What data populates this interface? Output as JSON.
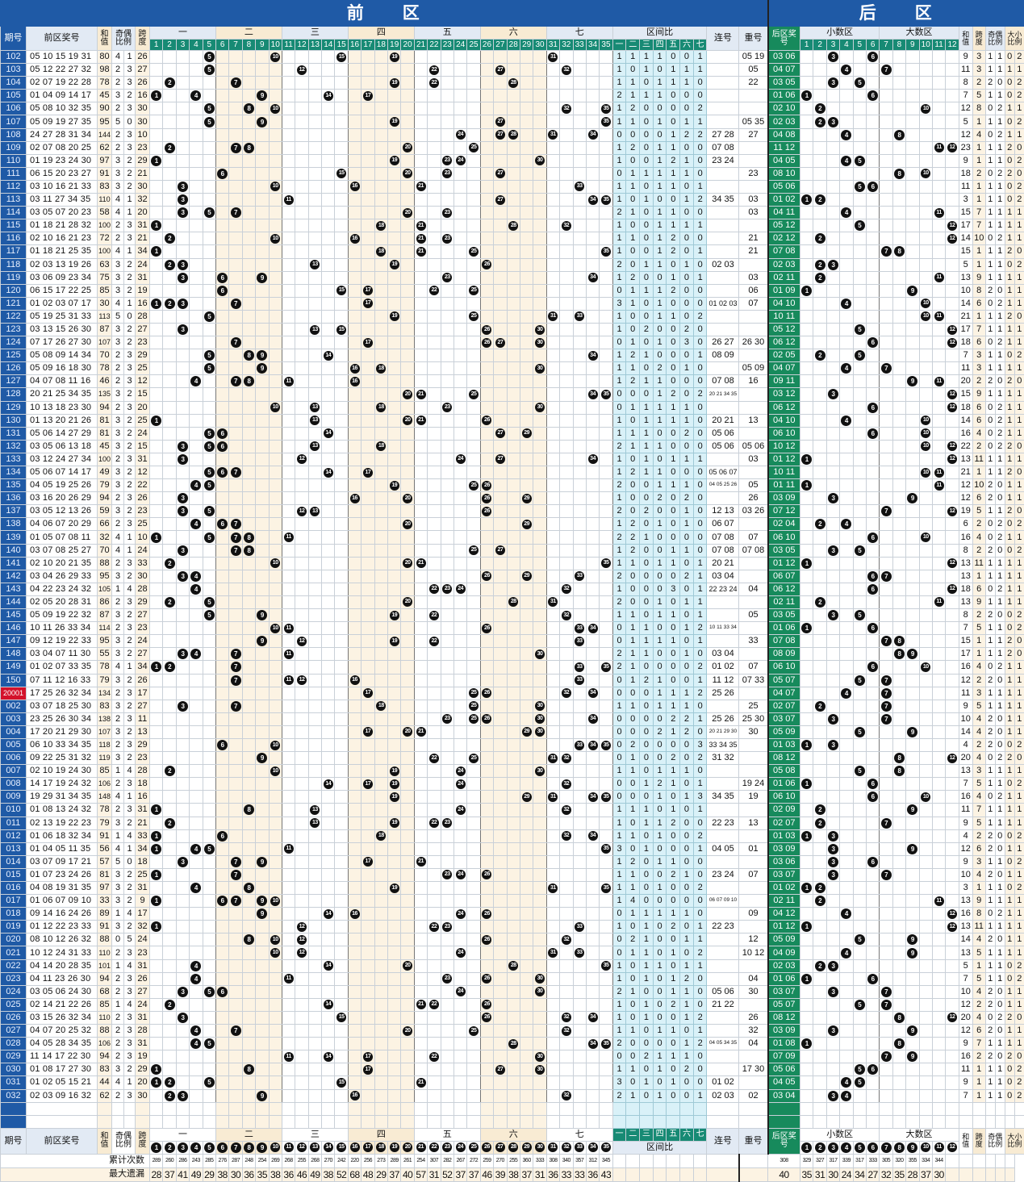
{
  "title": {
    "front": "前　　区",
    "back": "后　　区"
  },
  "headers": {
    "period": "期号",
    "front_numbers": "前区奖号",
    "sum": "和值",
    "odd_even": "奇偶比例",
    "span": "跨度",
    "zone_ratio": "区间比",
    "consecutive": "连号",
    "repeat": "重号",
    "back_numbers": "后区奖号",
    "small_zone": "小数区",
    "big_zone": "大数区",
    "back_sum": "和值",
    "back_span": "跨度",
    "back_odd_even": "奇偶比例",
    "back_big_small": "大小比例",
    "cumulative": "累计次数",
    "max_missing": "最大遗漏"
  },
  "front_zones": [
    "一",
    "二",
    "三",
    "四",
    "五",
    "六",
    "七"
  ],
  "colors": {
    "title": "#1f5aa6",
    "back_column": "#178a5c",
    "highlight": "#d3122b",
    "zone_ratio_bg": "#d9f1f8",
    "cream": "#fcf3e3"
  },
  "rows": [
    [
      "102",
      "05 10 15 19 31",
      "80",
      "4",
      "1",
      "26",
      "1111001",
      "",
      "05 19",
      "03 06",
      "9",
      "3",
      "1",
      "1",
      "0",
      "2"
    ],
    [
      "103",
      "05 12 22 27 32",
      "98",
      "2",
      "3",
      "27",
      "1010111",
      "",
      "05",
      "04 07",
      "11",
      "3",
      "1",
      "1",
      "1",
      "1"
    ],
    [
      "104",
      "02 07 19 22 28",
      "78",
      "2",
      "3",
      "26",
      "1101110",
      "",
      "22",
      "03 05",
      "8",
      "2",
      "2",
      "0",
      "0",
      "2"
    ],
    [
      "105",
      "01 04 09 14 17",
      "45",
      "3",
      "2",
      "16",
      "2111000",
      "",
      "",
      "01 06",
      "7",
      "5",
      "1",
      "1",
      "0",
      "2"
    ],
    [
      "106",
      "05 08 10 32 35",
      "90",
      "2",
      "3",
      "30",
      "1200002",
      "",
      "",
      "02 10",
      "12",
      "8",
      "0",
      "2",
      "1",
      "1"
    ],
    [
      "107",
      "05 09 19 27 35",
      "95",
      "5",
      "0",
      "30",
      "1101011",
      "",
      "05 35",
      "02 03",
      "5",
      "1",
      "1",
      "1",
      "0",
      "2"
    ],
    [
      "108",
      "24 27 28 31 34",
      "144",
      "2",
      "3",
      "10",
      "0000122",
      "27 28",
      "27",
      "04 08",
      "12",
      "4",
      "0",
      "2",
      "1",
      "1"
    ],
    [
      "109",
      "02 07 08 20 25",
      "62",
      "2",
      "3",
      "23",
      "1201100",
      "07 08",
      "",
      "11 12",
      "23",
      "1",
      "1",
      "1",
      "2",
      "0"
    ],
    [
      "110",
      "01 19 23 24 30",
      "97",
      "3",
      "2",
      "29",
      "1001210",
      "23 24",
      "",
      "04 05",
      "9",
      "1",
      "1",
      "1",
      "0",
      "2"
    ],
    [
      "111",
      "06 15 20 23 27",
      "91",
      "3",
      "2",
      "21",
      "0111110",
      "",
      "23",
      "08 10",
      "18",
      "2",
      "0",
      "2",
      "2",
      "0"
    ],
    [
      "112",
      "03 10 16 21 33",
      "83",
      "3",
      "2",
      "30",
      "1101101",
      "",
      "",
      "05 06",
      "11",
      "1",
      "1",
      "1",
      "0",
      "2"
    ],
    [
      "113",
      "03 11 27 34 35",
      "110",
      "4",
      "1",
      "32",
      "1010012",
      "34 35",
      "03",
      "01 02",
      "3",
      "1",
      "1",
      "1",
      "0",
      "2"
    ],
    [
      "114",
      "03 05 07 20 23",
      "58",
      "4",
      "1",
      "20",
      "2101100",
      "",
      "03",
      "04 11",
      "15",
      "7",
      "1",
      "1",
      "1",
      "1"
    ],
    [
      "115",
      "01 18 21 28 32",
      "100",
      "2",
      "3",
      "31",
      "1001111",
      "",
      "",
      "05 12",
      "17",
      "7",
      "1",
      "1",
      "1",
      "1"
    ],
    [
      "116",
      "02 10 16 21 23",
      "72",
      "2",
      "3",
      "21",
      "1101200",
      "",
      "21",
      "02 12",
      "14",
      "10",
      "0",
      "2",
      "1",
      "1"
    ],
    [
      "117",
      "01 18 21 25 35",
      "100",
      "4",
      "1",
      "34",
      "1001201",
      "",
      "21",
      "07 08",
      "15",
      "1",
      "1",
      "1",
      "2",
      "0"
    ],
    [
      "118",
      "02 03 13 19 26",
      "63",
      "3",
      "2",
      "24",
      "2011010",
      "02 03",
      "",
      "02 03",
      "5",
      "1",
      "1",
      "1",
      "0",
      "2"
    ],
    [
      "119",
      "03 06 09 23 34",
      "75",
      "3",
      "2",
      "31",
      "1200101",
      "",
      "03",
      "02 11",
      "13",
      "9",
      "1",
      "1",
      "1",
      "1"
    ],
    [
      "120",
      "06 15 17 22 25",
      "85",
      "3",
      "2",
      "19",
      "0111200",
      "",
      "06",
      "01 09",
      "10",
      "8",
      "2",
      "0",
      "1",
      "1"
    ],
    [
      "121",
      "01 02 03 07 17",
      "30",
      "4",
      "1",
      "16",
      "3101000",
      "01 02 03",
      "07",
      "04 10",
      "14",
      "6",
      "0",
      "2",
      "1",
      "1"
    ],
    [
      "122",
      "05 19 25 31 33",
      "113",
      "5",
      "0",
      "28",
      "1001102",
      "",
      "",
      "10 11",
      "21",
      "1",
      "1",
      "1",
      "2",
      "0"
    ],
    [
      "123",
      "03 13 15 26 30",
      "87",
      "3",
      "2",
      "27",
      "1020020",
      "",
      "",
      "05 12",
      "17",
      "7",
      "1",
      "1",
      "1",
      "1"
    ],
    [
      "124",
      "07 17 26 27 30",
      "107",
      "3",
      "2",
      "23",
      "0101030",
      "26 27",
      "26 30",
      "06 12",
      "18",
      "6",
      "0",
      "2",
      "1",
      "1"
    ],
    [
      "125",
      "05 08 09 14 34",
      "70",
      "2",
      "3",
      "29",
      "1210001",
      "08 09",
      "",
      "02 05",
      "7",
      "3",
      "1",
      "1",
      "0",
      "2"
    ],
    [
      "126",
      "05 09 16 18 30",
      "78",
      "2",
      "3",
      "25",
      "1102010",
      "",
      "05 09",
      "04 07",
      "11",
      "3",
      "1",
      "1",
      "1",
      "1"
    ],
    [
      "127",
      "04 07 08 11 16",
      "46",
      "2",
      "3",
      "12",
      "1211000",
      "07 08",
      "16",
      "09 11",
      "20",
      "2",
      "2",
      "0",
      "2",
      "0"
    ],
    [
      "128",
      "20 21 25 34 35",
      "135",
      "3",
      "2",
      "15",
      "0001202",
      "20 21 34 35",
      "",
      "03 12",
      "15",
      "9",
      "1",
      "1",
      "1",
      "1"
    ],
    [
      "129",
      "10 13 18 23 30",
      "94",
      "2",
      "3",
      "20",
      "0111110",
      "",
      "",
      "06 12",
      "18",
      "6",
      "0",
      "2",
      "1",
      "1"
    ],
    [
      "130",
      "01 13 20 21 26",
      "81",
      "3",
      "2",
      "25",
      "1011110",
      "20 21",
      "13",
      "04 10",
      "14",
      "6",
      "0",
      "2",
      "1",
      "1"
    ],
    [
      "131",
      "05 06 14 27 29",
      "81",
      "3",
      "2",
      "24",
      "1110020",
      "05 06",
      "",
      "06 10",
      "16",
      "4",
      "0",
      "2",
      "1",
      "1"
    ],
    [
      "132",
      "03 05 06 13 18",
      "45",
      "3",
      "2",
      "15",
      "2111000",
      "05 06",
      "05 06",
      "10 12",
      "22",
      "2",
      "0",
      "2",
      "2",
      "0"
    ],
    [
      "133",
      "03 12 24 27 34",
      "100",
      "2",
      "3",
      "31",
      "1010111",
      "",
      "03",
      "01 12",
      "13",
      "11",
      "1",
      "1",
      "1",
      "1"
    ],
    [
      "134",
      "05 06 07 14 17",
      "49",
      "3",
      "2",
      "12",
      "1211000",
      "05 06 07",
      "",
      "10 11",
      "21",
      "1",
      "1",
      "1",
      "2",
      "0"
    ],
    [
      "135",
      "04 05 19 25 26",
      "79",
      "3",
      "2",
      "22",
      "2001110",
      "04 05 25 26",
      "05",
      "01 11",
      "12",
      "10",
      "2",
      "0",
      "1",
      "1"
    ],
    [
      "136",
      "03 16 20 26 29",
      "94",
      "2",
      "3",
      "26",
      "1002020",
      "",
      "26",
      "03 09",
      "12",
      "6",
      "2",
      "0",
      "1",
      "1"
    ],
    [
      "137",
      "03 05 12 13 26",
      "59",
      "3",
      "2",
      "23",
      "2020010",
      "12 13",
      "03 26",
      "07 12",
      "19",
      "5",
      "1",
      "1",
      "2",
      "0"
    ],
    [
      "138",
      "04 06 07 20 29",
      "66",
      "2",
      "3",
      "25",
      "1201010",
      "06 07",
      "",
      "02 04",
      "6",
      "2",
      "0",
      "2",
      "0",
      "2"
    ],
    [
      "139",
      "01 05 07 08 11",
      "32",
      "4",
      "1",
      "10",
      "2210000",
      "07 08",
      "07",
      "06 10",
      "16",
      "4",
      "0",
      "2",
      "1",
      "1"
    ],
    [
      "140",
      "03 07 08 25 27",
      "70",
      "4",
      "1",
      "24",
      "1200110",
      "07 08",
      "07 08",
      "03 05",
      "8",
      "2",
      "2",
      "0",
      "0",
      "2"
    ],
    [
      "141",
      "02 10 20 21 35",
      "88",
      "2",
      "3",
      "33",
      "1101101",
      "20 21",
      "",
      "01 12",
      "13",
      "11",
      "1",
      "1",
      "1",
      "1"
    ],
    [
      "142",
      "03 04 26 29 33",
      "95",
      "3",
      "2",
      "30",
      "2000021",
      "03 04",
      "",
      "06 07",
      "13",
      "1",
      "1",
      "1",
      "1",
      "1"
    ],
    [
      "143",
      "04 22 23 24 32",
      "105",
      "1",
      "4",
      "28",
      "1000301",
      "22 23 24",
      "04",
      "06 12",
      "18",
      "6",
      "0",
      "2",
      "1",
      "1"
    ],
    [
      "144",
      "02 05 20 28 31",
      "86",
      "2",
      "3",
      "29",
      "2001011",
      "",
      "",
      "02 11",
      "13",
      "9",
      "1",
      "1",
      "1",
      "1"
    ],
    [
      "145",
      "05 09 19 22 32",
      "87",
      "3",
      "2",
      "27",
      "1101101",
      "",
      "05",
      "03 05",
      "8",
      "2",
      "2",
      "0",
      "0",
      "2"
    ],
    [
      "146",
      "10 11 26 33 34",
      "114",
      "2",
      "3",
      "23",
      "0110012",
      "10 11 33 34",
      "",
      "01 06",
      "7",
      "5",
      "1",
      "1",
      "0",
      "2"
    ],
    [
      "147",
      "09 12 19 22 33",
      "95",
      "3",
      "2",
      "24",
      "0111101",
      "",
      "33",
      "07 08",
      "15",
      "1",
      "1",
      "1",
      "2",
      "0"
    ],
    [
      "148",
      "03 04 07 11 30",
      "55",
      "3",
      "2",
      "27",
      "2110010",
      "03 04",
      "",
      "08 09",
      "17",
      "1",
      "1",
      "1",
      "2",
      "0"
    ],
    [
      "149",
      "01 02 07 33 35",
      "78",
      "4",
      "1",
      "34",
      "2100002",
      "01 02",
      "07",
      "06 10",
      "16",
      "4",
      "0",
      "2",
      "1",
      "1"
    ],
    [
      "150",
      "07 11 12 16 33",
      "79",
      "3",
      "2",
      "26",
      "0121001",
      "11 12",
      "07 33",
      "05 07",
      "12",
      "2",
      "2",
      "0",
      "1",
      "1"
    ],
    [
      "20001",
      "17 25 26 32 34",
      "134",
      "2",
      "3",
      "17",
      "0001112",
      "25 26",
      "",
      "04 07",
      "11",
      "3",
      "1",
      "1",
      "1",
      "1"
    ],
    [
      "002",
      "03 07 18 25 30",
      "83",
      "3",
      "2",
      "27",
      "1101110",
      "",
      "25",
      "02 07",
      "9",
      "5",
      "1",
      "1",
      "1",
      "1"
    ],
    [
      "003",
      "23 25 26 30 34",
      "138",
      "2",
      "3",
      "11",
      "0000221",
      "25 26",
      "25 30",
      "03 07",
      "10",
      "4",
      "2",
      "0",
      "1",
      "1"
    ],
    [
      "004",
      "17 20 21 29 30",
      "107",
      "3",
      "2",
      "13",
      "0002120",
      "20 21 29 30",
      "30",
      "05 09",
      "14",
      "4",
      "2",
      "0",
      "1",
      "1"
    ],
    [
      "005",
      "06 10 33 34 35",
      "118",
      "2",
      "3",
      "29",
      "0200003",
      "33 34 35",
      "",
      "01 03",
      "4",
      "2",
      "2",
      "0",
      "0",
      "2"
    ],
    [
      "006",
      "09 22 25 31 32",
      "119",
      "3",
      "2",
      "23",
      "0100202",
      "31 32",
      "",
      "08 12",
      "20",
      "4",
      "0",
      "2",
      "2",
      "0"
    ],
    [
      "007",
      "02 10 19 24 30",
      "85",
      "1",
      "4",
      "28",
      "1101110",
      "",
      "",
      "05 08",
      "13",
      "3",
      "1",
      "1",
      "1",
      "1"
    ],
    [
      "008",
      "14 17 19 24 32",
      "106",
      "2",
      "3",
      "18",
      "0012101",
      "",
      "19 24",
      "01 06",
      "7",
      "5",
      "1",
      "1",
      "0",
      "2"
    ],
    [
      "009",
      "19 29 31 34 35",
      "148",
      "4",
      "1",
      "16",
      "0001013",
      "34 35",
      "19",
      "06 10",
      "16",
      "4",
      "0",
      "2",
      "1",
      "1"
    ],
    [
      "010",
      "01 08 13 24 32",
      "78",
      "2",
      "3",
      "31",
      "1110101",
      "",
      "",
      "02 09",
      "11",
      "7",
      "1",
      "1",
      "1",
      "1"
    ],
    [
      "011",
      "02 13 19 22 23",
      "79",
      "3",
      "2",
      "21",
      "1011200",
      "22 23",
      "13",
      "02 07",
      "9",
      "5",
      "1",
      "1",
      "1",
      "1"
    ],
    [
      "012",
      "01 06 18 32 34",
      "91",
      "1",
      "4",
      "33",
      "1101002",
      "",
      "",
      "01 03",
      "4",
      "2",
      "2",
      "0",
      "0",
      "2"
    ],
    [
      "013",
      "01 04 05 11 35",
      "56",
      "4",
      "1",
      "34",
      "3010001",
      "04 05",
      "01",
      "03 09",
      "12",
      "6",
      "2",
      "0",
      "1",
      "1"
    ],
    [
      "014",
      "03 07 09 17 21",
      "57",
      "5",
      "0",
      "18",
      "1201100",
      "",
      "",
      "03 06",
      "9",
      "3",
      "1",
      "1",
      "0",
      "2"
    ],
    [
      "015",
      "01 07 23 24 26",
      "81",
      "3",
      "2",
      "25",
      "1100210",
      "23 24",
      "07",
      "03 07",
      "10",
      "4",
      "2",
      "0",
      "1",
      "1"
    ],
    [
      "016",
      "04 08 19 31 35",
      "97",
      "3",
      "2",
      "31",
      "1101002",
      "",
      "",
      "01 02",
      "3",
      "1",
      "1",
      "1",
      "0",
      "2"
    ],
    [
      "017",
      "01 06 07 09 10",
      "33",
      "3",
      "2",
      "9",
      "1400000",
      "06 07 09 10",
      "",
      "02 11",
      "13",
      "9",
      "1",
      "1",
      "1",
      "1"
    ],
    [
      "018",
      "09 14 16 24 26",
      "89",
      "1",
      "4",
      "17",
      "0111110",
      "",
      "09",
      "04 12",
      "16",
      "8",
      "0",
      "2",
      "1",
      "1"
    ],
    [
      "019",
      "01 12 22 23 33",
      "91",
      "3",
      "2",
      "32",
      "1010201",
      "22 23",
      "",
      "01 12",
      "13",
      "11",
      "1",
      "1",
      "1",
      "1"
    ],
    [
      "020",
      "08 10 12 26 32",
      "88",
      "0",
      "5",
      "24",
      "0210011",
      "",
      "12",
      "05 09",
      "14",
      "4",
      "2",
      "0",
      "1",
      "1"
    ],
    [
      "021",
      "10 12 24 31 33",
      "110",
      "2",
      "3",
      "23",
      "0110102",
      "",
      "10 12",
      "04 09",
      "13",
      "5",
      "1",
      "1",
      "1",
      "1"
    ],
    [
      "022",
      "04 14 20 28 35",
      "101",
      "1",
      "4",
      "31",
      "1011011",
      "",
      "",
      "02 03",
      "5",
      "1",
      "1",
      "1",
      "0",
      "2"
    ],
    [
      "023",
      "04 11 23 26 30",
      "94",
      "2",
      "3",
      "26",
      "1010120",
      "",
      "04",
      "01 06",
      "7",
      "5",
      "1",
      "1",
      "0",
      "2"
    ],
    [
      "024",
      "03 05 06 24 30",
      "68",
      "2",
      "3",
      "27",
      "2100110",
      "05 06",
      "30",
      "03 07",
      "10",
      "4",
      "2",
      "0",
      "1",
      "1"
    ],
    [
      "025",
      "02 14 21 22 26",
      "85",
      "1",
      "4",
      "24",
      "1010210",
      "21 22",
      "",
      "05 07",
      "12",
      "2",
      "2",
      "0",
      "1",
      "1"
    ],
    [
      "026",
      "03 15 26 32 34",
      "110",
      "2",
      "3",
      "31",
      "1010012",
      "",
      "26",
      "08 12",
      "20",
      "4",
      "0",
      "2",
      "2",
      "0"
    ],
    [
      "027",
      "04 07 20 25 32",
      "88",
      "2",
      "3",
      "28",
      "1101101",
      "",
      "32",
      "03 09",
      "12",
      "6",
      "2",
      "0",
      "1",
      "1"
    ],
    [
      "028",
      "04 05 28 34 35",
      "106",
      "2",
      "3",
      "31",
      "2000012",
      "04 05 34 35",
      "04",
      "01 08",
      "9",
      "7",
      "1",
      "1",
      "1",
      "1"
    ],
    [
      "029",
      "11 14 17 22 30",
      "94",
      "2",
      "3",
      "19",
      "0021110",
      "",
      "",
      "07 09",
      "16",
      "2",
      "2",
      "0",
      "2",
      "0"
    ],
    [
      "030",
      "01 08 17 27 30",
      "83",
      "3",
      "2",
      "29",
      "1101020",
      "",
      "17 30",
      "05 06",
      "11",
      "1",
      "1",
      "1",
      "0",
      "2"
    ],
    [
      "031",
      "01 02 05 15 21",
      "44",
      "4",
      "1",
      "20",
      "3010100",
      "01 02",
      "",
      "04 05",
      "9",
      "1",
      "1",
      "1",
      "0",
      "2"
    ],
    [
      "032",
      "02 03 09 16 32",
      "62",
      "2",
      "3",
      "30",
      "2101001",
      "02 03",
      "02",
      "03 04",
      "7",
      "1",
      "1",
      "1",
      "0",
      "2"
    ]
  ],
  "stats": {
    "front_cumulative": [
      "289",
      "260",
      "286",
      "243",
      "285",
      "276",
      "287",
      "248",
      "254",
      "269",
      "268",
      "255",
      "268",
      "270",
      "242",
      "220",
      "256",
      "273",
      "289",
      "261",
      "254",
      "307",
      "282",
      "267",
      "272",
      "259",
      "270",
      "255",
      "360",
      "333",
      "308",
      "340",
      "357",
      "312",
      "345"
    ],
    "front_max_missing": [
      "28",
      "37",
      "41",
      "49",
      "29",
      "38",
      "30",
      "36",
      "35",
      "38",
      "36",
      "46",
      "49",
      "38",
      "52",
      "68",
      "48",
      "29",
      "37",
      "40",
      "57",
      "31",
      "52",
      "37",
      "37",
      "46",
      "39",
      "38",
      "37",
      "31",
      "36",
      "33",
      "33",
      "36",
      "43"
    ],
    "back_cumulative": [
      "308",
      "329",
      "327",
      "317",
      "339",
      "317",
      "333",
      "305",
      "320",
      "355",
      "334",
      "344"
    ],
    "back_max_missing": [
      "40",
      "35",
      "31",
      "30",
      "24",
      "34",
      "27",
      "32",
      "35",
      "28",
      "37",
      "30"
    ]
  }
}
